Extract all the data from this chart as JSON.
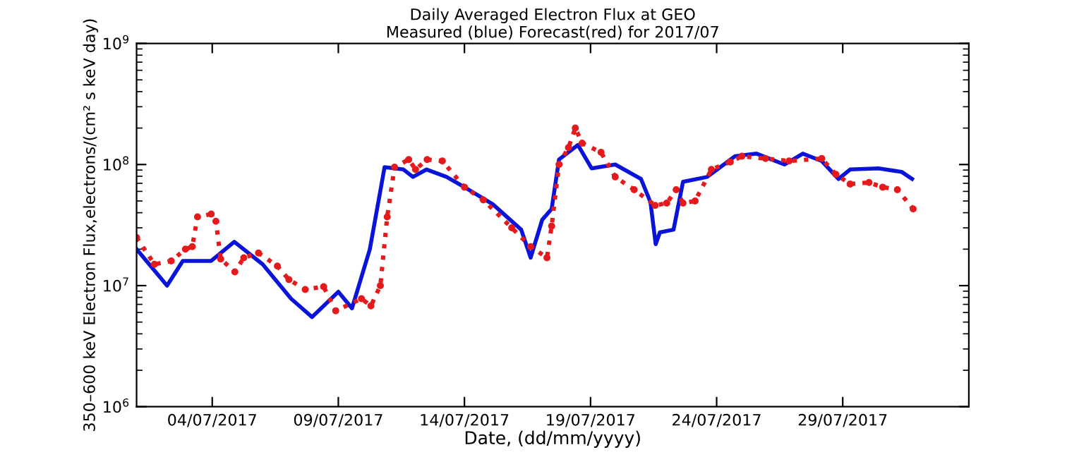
{
  "chart_data": {
    "type": "line",
    "title": "Daily Averaged Electron Flux at GEO\nMeasured (blue) Forecast(red) for 2017/07",
    "xlabel": "Date, (dd/mm/yyyy)",
    "ylabel": "350–600 keV Electron Flux,electrons/(cm² s keV day)",
    "log": "y",
    "grid": false,
    "xlim": [
      "2017-07-01",
      "2017-08-03"
    ],
    "xticks": [
      {
        "value": "2017-07-04",
        "label": "04/07/2017"
      },
      {
        "value": "2017-07-09",
        "label": "09/07/2017"
      },
      {
        "value": "2017-07-14",
        "label": "14/07/2017"
      },
      {
        "value": "2017-07-19",
        "label": "19/07/2017"
      },
      {
        "value": "2017-07-24",
        "label": "24/07/2017"
      },
      {
        "value": "2017-07-29",
        "label": "29/07/2017"
      }
    ],
    "ylim": [
      1000000.0,
      1000000000.0
    ],
    "yticks": [
      {
        "value": 1000000.0,
        "label": "10$^{6}$"
      },
      {
        "value": 10000000.0,
        "label": "10$^{7}$"
      },
      {
        "value": 100000000.0,
        "label": "10$^{8}$"
      },
      {
        "value": 1000000000.0,
        "label": "10$^{9}$"
      }
    ],
    "series": [
      {
        "color": "#0a14d8",
        "line_style": "solid",
        "marker": "none",
        "x": [
          "2017-07-01T00:00",
          "2017-07-02T05:00",
          "2017-07-02T20:00",
          "2017-07-03T23:00",
          "2017-07-04T21:00",
          "2017-07-06T00:00",
          "2017-07-07T03:00",
          "2017-07-07T23:00",
          "2017-07-09T00:00",
          "2017-07-09T13:00",
          "2017-07-10T06:00",
          "2017-07-10T20:00",
          "2017-07-11T14:00",
          "2017-07-11T23:00",
          "2017-07-12T12:00",
          "2017-07-13T07:00",
          "2017-07-14T00:00",
          "2017-07-15T03:00",
          "2017-07-16T06:00",
          "2017-07-16T15:00",
          "2017-07-17T02:00",
          "2017-07-17T11:00",
          "2017-07-17T18:00",
          "2017-07-18T12:00",
          "2017-07-19T01:00",
          "2017-07-19T23:30",
          "2017-07-21T00:00",
          "2017-07-21T09:00",
          "2017-07-21T14:00",
          "2017-07-21T18:00",
          "2017-07-22T07:00",
          "2017-07-22T16:00",
          "2017-07-23T15:00",
          "2017-07-24T17:30",
          "2017-07-25T14:00",
          "2017-07-26T16:30",
          "2017-07-27T10:00",
          "2017-07-28T04:00",
          "2017-07-28T20:00",
          "2017-07-29T07:00",
          "2017-07-30T10:00",
          "2017-07-31T08:00",
          "2017-07-31T18:00"
        ],
        "values": [
          20000000.0,
          10000000.0,
          16000000.0,
          16000000.0,
          23000000.0,
          15000000.0,
          7800000.0,
          5500000.0,
          8900000.0,
          6500000.0,
          20000000.0,
          95000000.0,
          91000000.0,
          79000000.0,
          91000000.0,
          79000000.0,
          65000000.0,
          47000000.0,
          29000000.0,
          17000000.0,
          35000000.0,
          43000000.0,
          110000000.0,
          145000000.0,
          93000000.0,
          100000000.0,
          76000000.0,
          49000000.0,
          22000000.0,
          27500000.0,
          29000000.0,
          72000000.0,
          79000000.0,
          117000000.0,
          123000000.0,
          100000000.0,
          123000000.0,
          107000000.0,
          76000000.0,
          91000000.0,
          93000000.0,
          87000000.0,
          76000000.0
        ]
      },
      {
        "color": "#e41a1c",
        "line_style": "dotted",
        "marker": "circle",
        "x": [
          "2017-07-01T00:00",
          "2017-07-01T17:00",
          "2017-07-02T09:00",
          "2017-07-02T22:30",
          "2017-07-03T05:00",
          "2017-07-03T10:00",
          "2017-07-03T23:00",
          "2017-07-04T03:30",
          "2017-07-04T08:00",
          "2017-07-04T21:30",
          "2017-07-05T06:00",
          "2017-07-05T20:00",
          "2017-07-06T14:00",
          "2017-07-07T01:00",
          "2017-07-07T16:30",
          "2017-07-08T10:00",
          "2017-07-08T21:30",
          "2017-07-09T22:00",
          "2017-07-10T07:00",
          "2017-07-10T16:00",
          "2017-07-10T22:30",
          "2017-07-11T05:30",
          "2017-07-11T19:00",
          "2017-07-12T01:30",
          "2017-07-12T12:30",
          "2017-07-13T03:00",
          "2017-07-14T00:00",
          "2017-07-14T18:00",
          "2017-07-15T21:00",
          "2017-07-16T15:00",
          "2017-07-17T06:30",
          "2017-07-17T11:00",
          "2017-07-17T18:00",
          "2017-07-18T03:00",
          "2017-07-18T09:30",
          "2017-07-18T16:00",
          "2017-07-19T10:00",
          "2017-07-19T23:30",
          "2017-07-20T17:30",
          "2017-07-21T13:30",
          "2017-07-22T00:30",
          "2017-07-22T09:30",
          "2017-07-22T16:00",
          "2017-07-23T03:30",
          "2017-07-23T19:00",
          "2017-07-24T13:00",
          "2017-07-25T00:00",
          "2017-07-25T22:30",
          "2017-07-26T21:00",
          "2017-07-28T04:00",
          "2017-07-28T17:30",
          "2017-07-29T07:00",
          "2017-07-30T01:00",
          "2017-07-30T14:00",
          "2017-07-31T04:00",
          "2017-07-31T19:00"
        ],
        "values": [
          25000000.0,
          15000000.0,
          16000000.0,
          20000000.0,
          21000000.0,
          37000000.0,
          39000000.0,
          34000000.0,
          16600000.0,
          13000000.0,
          17000000.0,
          18600000.0,
          14500000.0,
          11200000.0,
          9300000.0,
          9800000.0,
          6200000.0,
          7800000.0,
          6800000.0,
          10000000.0,
          37000000.0,
          95000000.0,
          110000000.0,
          91000000.0,
          110000000.0,
          107000000.0,
          65000000.0,
          51000000.0,
          30000000.0,
          21000000.0,
          17000000.0,
          31000000.0,
          100000000.0,
          138000000.0,
          200000000.0,
          150000000.0,
          126000000.0,
          79000000.0,
          62000000.0,
          46000000.0,
          48000000.0,
          62000000.0,
          48000000.0,
          50000000.0,
          91000000.0,
          105000000.0,
          117000000.0,
          112000000.0,
          107000000.0,
          112000000.0,
          83000000.0,
          69000000.0,
          71000000.0,
          65000000.0,
          62000000.0,
          43000000.0
        ]
      }
    ]
  }
}
